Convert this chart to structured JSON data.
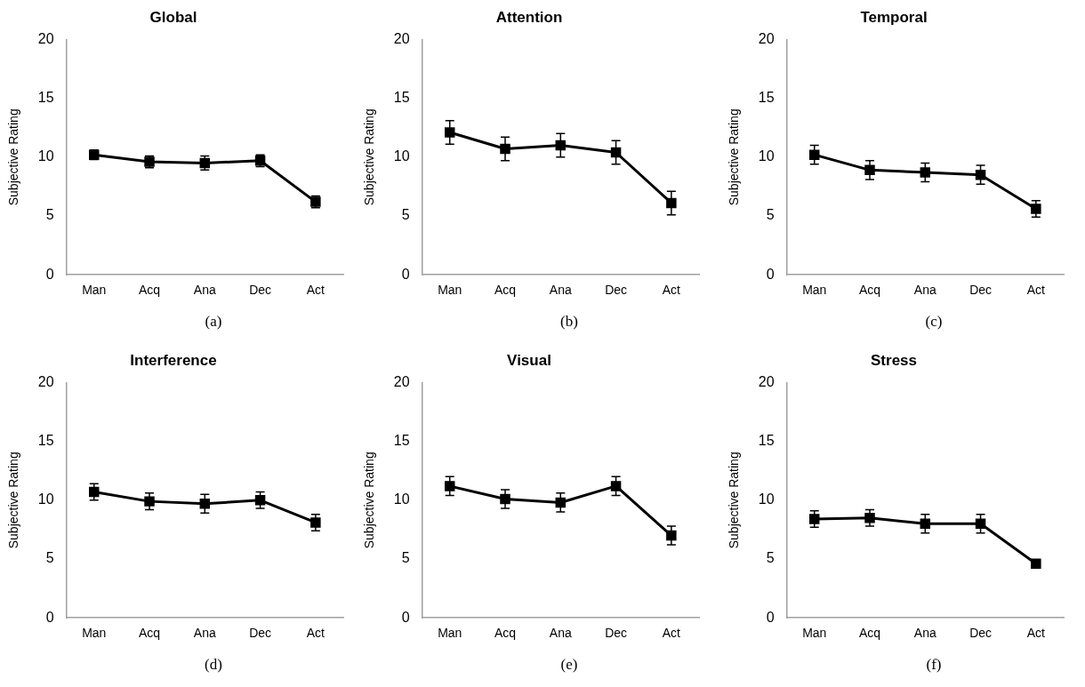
{
  "chart_data": [
    {
      "type": "line",
      "title": "Global",
      "ylabel": "Subjective Rating",
      "categories": [
        "Man",
        "Acq",
        "Ana",
        "Dec",
        "Act"
      ],
      "series": [
        {
          "color": "#000000",
          "values": [
            10.2,
            9.6,
            9.5,
            9.7,
            6.2
          ],
          "errors": [
            0.4,
            0.5,
            0.6,
            0.5,
            0.5
          ]
        }
      ],
      "ylim": [
        0,
        20
      ],
      "yticks": [
        0,
        5,
        10,
        15,
        20
      ],
      "grid": false,
      "legend": false,
      "marker": "square",
      "line_style": "solid",
      "annotations": [
        "(a)"
      ]
    },
    {
      "type": "line",
      "title": "Attention",
      "ylabel": "Subjective Rating",
      "categories": [
        "Man",
        "Acq",
        "Ana",
        "Dec",
        "Act"
      ],
      "series": [
        {
          "color": "#000000",
          "values": [
            12.1,
            10.7,
            11.0,
            10.4,
            6.1
          ],
          "errors": [
            1.0,
            1.0,
            1.0,
            1.0,
            1.0
          ]
        }
      ],
      "ylim": [
        0,
        20
      ],
      "yticks": [
        0,
        5,
        10,
        15,
        20
      ],
      "grid": false,
      "legend": false,
      "marker": "square",
      "line_style": "solid",
      "annotations": [
        "(b)"
      ]
    },
    {
      "type": "line",
      "title": "Temporal",
      "ylabel": "Subjective Rating",
      "categories": [
        "Man",
        "Acq",
        "Ana",
        "Dec",
        "Act"
      ],
      "series": [
        {
          "color": "#000000",
          "values": [
            10.2,
            8.9,
            8.7,
            8.5,
            5.6
          ],
          "errors": [
            0.8,
            0.8,
            0.8,
            0.8,
            0.7
          ]
        }
      ],
      "ylim": [
        0,
        20
      ],
      "yticks": [
        0,
        5,
        10,
        15,
        20
      ],
      "grid": false,
      "legend": false,
      "marker": "square",
      "line_style": "solid",
      "annotations": [
        "(c)"
      ]
    },
    {
      "type": "line",
      "title": "Interference",
      "ylabel": "Subjective Rating",
      "categories": [
        "Man",
        "Acq",
        "Ana",
        "Dec",
        "Act"
      ],
      "series": [
        {
          "color": "#000000",
          "values": [
            10.7,
            9.9,
            9.7,
            10.0,
            8.1
          ],
          "errors": [
            0.7,
            0.7,
            0.8,
            0.7,
            0.7
          ]
        }
      ],
      "ylim": [
        0,
        20
      ],
      "yticks": [
        0,
        5,
        10,
        15,
        20
      ],
      "grid": false,
      "legend": false,
      "marker": "square",
      "line_style": "solid",
      "annotations": [
        "(d)"
      ]
    },
    {
      "type": "line",
      "title": "Visual",
      "ylabel": "Subjective Rating",
      "categories": [
        "Man",
        "Acq",
        "Ana",
        "Dec",
        "Act"
      ],
      "series": [
        {
          "color": "#000000",
          "values": [
            11.2,
            10.1,
            9.8,
            11.2,
            7.0
          ],
          "errors": [
            0.8,
            0.8,
            0.8,
            0.8,
            0.8
          ]
        }
      ],
      "ylim": [
        0,
        20
      ],
      "yticks": [
        0,
        5,
        10,
        15,
        20
      ],
      "grid": false,
      "legend": false,
      "marker": "square",
      "line_style": "solid",
      "annotations": [
        "(e)"
      ]
    },
    {
      "type": "line",
      "title": "Stress",
      "ylabel": "Subjective Rating",
      "categories": [
        "Man",
        "Acq",
        "Ana",
        "Dec",
        "Act"
      ],
      "series": [
        {
          "color": "#000000",
          "values": [
            8.4,
            8.5,
            8.0,
            8.0,
            4.6
          ],
          "errors": [
            0.7,
            0.7,
            0.8,
            0.8,
            null
          ]
        }
      ],
      "ylim": [
        0,
        20
      ],
      "yticks": [
        0,
        5,
        10,
        15,
        20
      ],
      "grid": false,
      "legend": false,
      "marker": "square",
      "line_style": "solid",
      "annotations": [
        "(f)"
      ]
    }
  ]
}
